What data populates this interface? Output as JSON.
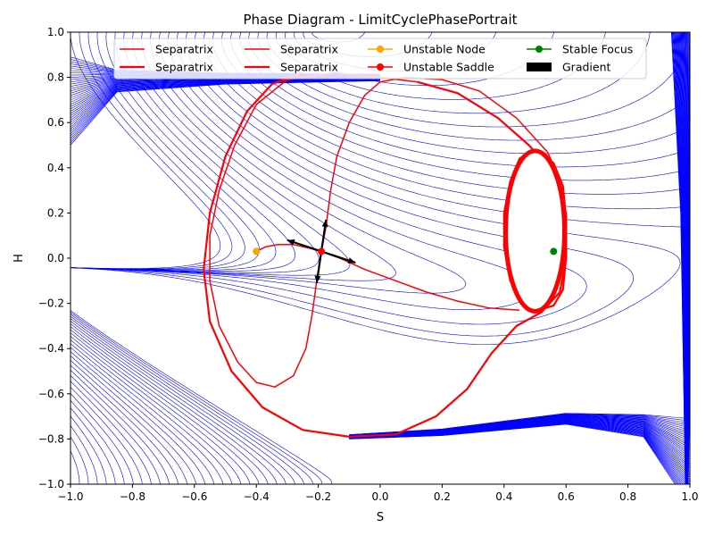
{
  "chart_data": {
    "type": "line",
    "title": "Phase Diagram - LimitCyclePhasePortrait",
    "xlabel": "S",
    "ylabel": "H",
    "xlim": [
      -1.0,
      1.0
    ],
    "ylim": [
      -1.0,
      1.0
    ],
    "xticks": [
      -1.0,
      -0.8,
      -0.6,
      -0.4,
      -0.2,
      0.0,
      0.2,
      0.4,
      0.6,
      0.8,
      1.0
    ],
    "yticks": [
      -1.0,
      -0.8,
      -0.6,
      -0.4,
      -0.2,
      0.0,
      0.2,
      0.4,
      0.6,
      0.8,
      1.0
    ],
    "xtick_labels": [
      "−1.0",
      "−0.8",
      "−0.6",
      "−0.4",
      "−0.2",
      "0.0",
      "0.2",
      "0.4",
      "0.6",
      "0.8",
      "1.0"
    ],
    "ytick_labels": [
      "−1.0",
      "−0.8",
      "−0.6",
      "−0.4",
      "−0.2",
      "0.0",
      "0.2",
      "0.4",
      "0.6",
      "0.8",
      "1.0"
    ],
    "grid": false,
    "legend_position": "top",
    "legend": [
      {
        "label": "Separatrix",
        "kind": "line",
        "color": "#ff0000",
        "lw": 1.5
      },
      {
        "label": "Separatrix",
        "kind": "line",
        "color": "#ff0000",
        "lw": 2.2
      },
      {
        "label": "Separatrix",
        "kind": "line",
        "color": "#ff0000",
        "lw": 1.5
      },
      {
        "label": "Separatrix",
        "kind": "line",
        "color": "#ff0000",
        "lw": 2.2
      },
      {
        "label": "Unstable Node",
        "kind": "marker",
        "color": "#ffa500"
      },
      {
        "label": "Unstable Saddle",
        "kind": "marker",
        "color": "#ff0000"
      },
      {
        "label": "Stable Focus",
        "kind": "marker",
        "color": "#008000"
      },
      {
        "label": "Gradient",
        "kind": "patch",
        "color": "#000000"
      }
    ],
    "fixed_points": [
      {
        "name": "Unstable Node",
        "x": -0.4,
        "y": 0.03,
        "color": "#ffa500"
      },
      {
        "name": "Unstable Saddle",
        "x": -0.19,
        "y": 0.03,
        "color": "#ff0000"
      },
      {
        "name": "Stable Focus",
        "x": 0.56,
        "y": 0.03,
        "color": "#008000"
      }
    ],
    "gradient_arrows": [
      {
        "x": -0.19,
        "y": 0.03,
        "dx": -0.11,
        "dy": 0.05
      },
      {
        "x": -0.19,
        "y": 0.03,
        "dx": 0.11,
        "dy": -0.05
      },
      {
        "x": -0.19,
        "y": 0.03,
        "dx": 0.015,
        "dy": 0.14
      },
      {
        "x": -0.19,
        "y": 0.03,
        "dx": -0.015,
        "dy": -0.14
      }
    ],
    "separatrices": [
      {
        "name": "Separatrix",
        "width": 1.5,
        "points": [
          [
            -0.4,
            0.03
          ],
          [
            -0.37,
            0.05
          ],
          [
            -0.33,
            0.06
          ],
          [
            -0.28,
            0.06
          ],
          [
            -0.23,
            0.045
          ],
          [
            -0.19,
            0.03
          ]
        ]
      },
      {
        "name": "Separatrix",
        "width": 1.5,
        "points": [
          [
            -0.19,
            0.03
          ],
          [
            -0.13,
            0.0
          ],
          [
            -0.05,
            -0.05
          ],
          [
            0.05,
            -0.1
          ],
          [
            0.15,
            -0.15
          ],
          [
            0.25,
            -0.19
          ],
          [
            0.35,
            -0.22
          ],
          [
            0.45,
            -0.23
          ]
        ]
      },
      {
        "name": "Separatrix",
        "width": 1.5,
        "points": [
          [
            -0.19,
            0.03
          ],
          [
            -0.175,
            0.14
          ],
          [
            -0.16,
            0.3
          ],
          [
            -0.14,
            0.45
          ],
          [
            -0.1,
            0.6
          ],
          [
            -0.05,
            0.72
          ],
          [
            0.0,
            0.78
          ],
          [
            0.08,
            0.8
          ],
          [
            0.2,
            0.79
          ],
          [
            0.32,
            0.74
          ],
          [
            0.44,
            0.62
          ],
          [
            0.54,
            0.47
          ],
          [
            0.58,
            0.35
          ]
        ]
      },
      {
        "name": "Separatrix",
        "width": 1.5,
        "points": [
          [
            -0.19,
            0.03
          ],
          [
            -0.205,
            -0.1
          ],
          [
            -0.22,
            -0.25
          ],
          [
            -0.24,
            -0.4
          ],
          [
            -0.28,
            -0.52
          ],
          [
            -0.34,
            -0.57
          ],
          [
            -0.4,
            -0.55
          ],
          [
            -0.46,
            -0.46
          ],
          [
            -0.52,
            -0.3
          ],
          [
            -0.55,
            -0.1
          ],
          [
            -0.55,
            0.1
          ],
          [
            -0.52,
            0.3
          ],
          [
            -0.47,
            0.5
          ],
          [
            -0.4,
            0.68
          ],
          [
            -0.3,
            0.79
          ],
          [
            -0.15,
            0.82
          ],
          [
            0.0,
            0.8
          ],
          [
            0.12,
            0.78
          ]
        ]
      },
      {
        "name": "Separatrix",
        "width": 2.2,
        "points": [
          [
            0.12,
            0.78
          ],
          [
            0.25,
            0.73
          ],
          [
            0.38,
            0.62
          ],
          [
            0.48,
            0.5
          ],
          [
            0.56,
            0.38
          ],
          [
            0.6,
            0.2
          ],
          [
            0.6,
            0.0
          ],
          [
            0.58,
            -0.15
          ],
          [
            0.52,
            -0.24
          ],
          [
            0.44,
            -0.3
          ],
          [
            0.36,
            -0.42
          ],
          [
            0.28,
            -0.58
          ],
          [
            0.18,
            -0.7
          ],
          [
            0.05,
            -0.78
          ],
          [
            -0.1,
            -0.79
          ],
          [
            -0.25,
            -0.76
          ],
          [
            -0.38,
            -0.66
          ],
          [
            -0.48,
            -0.5
          ],
          [
            -0.55,
            -0.28
          ],
          [
            -0.57,
            -0.05
          ],
          [
            -0.55,
            0.2
          ],
          [
            -0.5,
            0.45
          ],
          [
            -0.43,
            0.65
          ],
          [
            -0.35,
            0.77
          ],
          [
            -0.25,
            0.82
          ]
        ]
      },
      {
        "name": "Separatrix",
        "width": 2.2,
        "points": [
          [
            0.48,
            0.47
          ],
          [
            0.52,
            0.46
          ],
          [
            0.56,
            0.42
          ],
          [
            0.59,
            0.32
          ],
          [
            0.6,
            0.18
          ],
          [
            0.6,
            0.0
          ],
          [
            0.59,
            -0.14
          ],
          [
            0.56,
            -0.21
          ],
          [
            0.51,
            -0.23
          ],
          [
            0.46,
            -0.2
          ],
          [
            0.42,
            -0.1
          ],
          [
            0.4,
            0.05
          ],
          [
            0.4,
            0.2
          ],
          [
            0.42,
            0.34
          ],
          [
            0.45,
            0.44
          ],
          [
            0.48,
            0.47
          ]
        ]
      }
    ],
    "limit_cycle": {
      "cx": 0.5,
      "cy": 0.12,
      "rx": 0.095,
      "ry": 0.355,
      "color": "#ff0000",
      "note": "thick red closed orbit enclosing white region"
    },
    "trajectory_color": "#0000ff",
    "separatrix_color": "#ff0000"
  }
}
